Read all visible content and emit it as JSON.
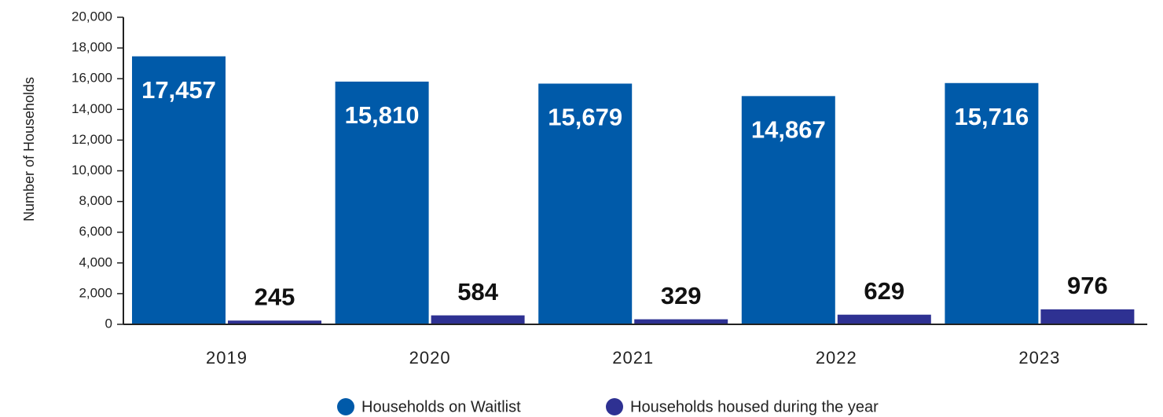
{
  "chart_data": {
    "type": "bar",
    "ylabel": "Number of Households",
    "categories": [
      "2019",
      "2020",
      "2021",
      "2022",
      "2023"
    ],
    "series": [
      {
        "name": "Households on Waitlist",
        "color": "#005aa9",
        "values": [
          17457,
          15810,
          15679,
          14867,
          15716
        ],
        "value_labels": [
          "17,457",
          "15,810",
          "15,679",
          "14,867",
          "15,716"
        ]
      },
      {
        "name": "Households housed during the year",
        "color": "#2e3192",
        "values": [
          245,
          584,
          329,
          629,
          976
        ],
        "value_labels": [
          "245",
          "584",
          "329",
          "629",
          "976"
        ]
      }
    ],
    "ylim": [
      0,
      20000
    ],
    "yticks": [
      0,
      {
        "value": 2000,
        "label": "2,000"
      },
      {
        "value": 4000,
        "label": "4,000"
      },
      {
        "value": 6000,
        "label": "6,000"
      },
      {
        "value": 8000,
        "label": "8,000"
      },
      {
        "value": 10000,
        "label": "10,000"
      },
      {
        "value": 12000,
        "label": "12,000"
      },
      {
        "value": 14000,
        "label": "14,000"
      },
      {
        "value": 16000,
        "label": "16,000"
      },
      {
        "value": 18000,
        "label": "18,000"
      },
      {
        "value": 20000,
        "label": "20,000"
      }
    ],
    "legend": "bottom"
  }
}
